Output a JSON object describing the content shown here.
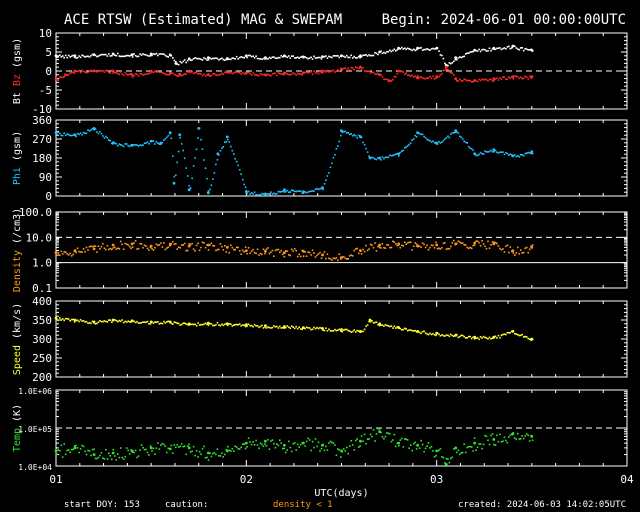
{
  "header": {
    "title": "ACE RTSW (Estimated) MAG & SWEPAM",
    "begin": "Begin: 2024-06-01 00:00:00UTC"
  },
  "footer": {
    "start_doy": "start DOY: 153",
    "caution": "caution:",
    "density_note": "density < 1",
    "created": "created: 2024-06-03 14:02:05UTC"
  },
  "colors": {
    "bt": "#ffffff",
    "bz": "#ff2a2a",
    "phi": "#22c4ff",
    "density": "#ff9a1c",
    "speed": "#ffff33",
    "temp": "#33e533",
    "axis": "#ffffff"
  },
  "chart_data": [
    {
      "type": "scatter",
      "panel": "mag",
      "ylabel_parts": [
        "Bt",
        "Bz",
        "(gsm)"
      ],
      "yticks": [
        "10",
        "5",
        "0",
        "-5",
        "-10"
      ],
      "ylim": [
        -10,
        10
      ],
      "xlim": [
        1,
        4
      ],
      "dashed_ref": [
        0
      ],
      "series": [
        {
          "name": "Bt",
          "x": [
            1.0,
            1.1,
            1.2,
            1.3,
            1.4,
            1.5,
            1.6,
            1.63,
            1.7,
            1.8,
            1.9,
            2.0,
            2.1,
            2.2,
            2.3,
            2.4,
            2.5,
            2.6,
            2.7,
            2.8,
            2.9,
            3.0,
            3.05,
            3.1,
            3.2,
            3.3,
            3.4,
            3.5
          ],
          "y": [
            4.0,
            4.0,
            4.3,
            4.5,
            4.3,
            4.5,
            4.2,
            2.0,
            3.2,
            3.5,
            3.3,
            4.0,
            3.5,
            4.0,
            3.7,
            3.8,
            4.0,
            4.0,
            5.0,
            6.0,
            6.0,
            6.0,
            1.5,
            3.5,
            5.5,
            6.0,
            6.5,
            5.5
          ]
        },
        {
          "name": "Bz",
          "x": [
            1.0,
            1.05,
            1.1,
            1.2,
            1.3,
            1.4,
            1.5,
            1.6,
            1.65,
            1.7,
            1.8,
            1.9,
            2.0,
            2.1,
            2.2,
            2.3,
            2.4,
            2.5,
            2.6,
            2.7,
            2.75,
            2.8,
            2.9,
            3.0,
            3.05,
            3.1,
            3.2,
            3.3,
            3.4,
            3.5
          ],
          "y": [
            -2.0,
            -1.0,
            0.0,
            0.0,
            0.0,
            -1.0,
            0.0,
            -0.5,
            -0.8,
            0.0,
            -1.0,
            -0.3,
            -0.5,
            -1.0,
            -0.5,
            -0.5,
            0.0,
            0.5,
            1.0,
            -1.0,
            -2.5,
            0.0,
            -1.5,
            -1.5,
            1.0,
            -2.0,
            -2.5,
            -2.0,
            -1.5,
            -1.5
          ]
        }
      ]
    },
    {
      "type": "scatter",
      "panel": "phi",
      "ylabel_parts": [
        "Phi",
        "(gsm)"
      ],
      "yticks": [
        "360",
        "270",
        "180",
        "90",
        "0"
      ],
      "ylim": [
        0,
        360
      ],
      "xlim": [
        1,
        4
      ],
      "series": [
        {
          "name": "Phi",
          "x": [
            1.0,
            1.1,
            1.2,
            1.3,
            1.4,
            1.5,
            1.55,
            1.6,
            1.62,
            1.65,
            1.7,
            1.75,
            1.8,
            1.85,
            1.9,
            2.0,
            2.1,
            2.2,
            2.3,
            2.4,
            2.5,
            2.6,
            2.65,
            2.7,
            2.8,
            2.9,
            3.0,
            3.1,
            3.2,
            3.3,
            3.4,
            3.5
          ],
          "y": [
            300,
            290,
            320,
            250,
            240,
            260,
            250,
            300,
            60,
            290,
            30,
            320,
            15,
            200,
            280,
            20,
            10,
            30,
            20,
            40,
            310,
            280,
            180,
            180,
            200,
            300,
            250,
            310,
            200,
            220,
            190,
            210
          ]
        }
      ]
    },
    {
      "type": "scatter",
      "panel": "density",
      "ylabel_parts": [
        "Density",
        "(/cm3)"
      ],
      "yticks": [
        "100.0",
        "10.0",
        "1.0",
        "0.1"
      ],
      "yscale": "log",
      "ylim": [
        0.1,
        100
      ],
      "xlim": [
        1,
        4
      ],
      "dashed_ref": [
        10
      ],
      "solid_ref": [
        1
      ],
      "series": [
        {
          "name": "Density",
          "x": [
            1.0,
            1.1,
            1.2,
            1.3,
            1.4,
            1.5,
            1.6,
            1.7,
            1.8,
            1.9,
            2.0,
            2.1,
            2.2,
            2.3,
            2.4,
            2.5,
            2.6,
            2.7,
            2.8,
            2.9,
            3.0,
            3.1,
            3.2,
            3.3,
            3.4,
            3.5
          ],
          "y": [
            2.5,
            3.0,
            3.5,
            5.0,
            5.5,
            4.5,
            5.0,
            4.5,
            5.0,
            4.0,
            3.0,
            2.8,
            2.5,
            2.8,
            2.0,
            1.6,
            3.0,
            5.0,
            5.5,
            4.5,
            5.0,
            5.5,
            6.0,
            5.5,
            3.0,
            4.0
          ]
        }
      ]
    },
    {
      "type": "scatter",
      "panel": "speed",
      "ylabel_parts": [
        "Speed",
        "(km/s)"
      ],
      "yticks": [
        "400",
        "350",
        "300",
        "250",
        "200"
      ],
      "ylim": [
        200,
        400
      ],
      "xlim": [
        1,
        4
      ],
      "series": [
        {
          "name": "Speed",
          "x": [
            1.0,
            1.1,
            1.2,
            1.3,
            1.4,
            1.5,
            1.6,
            1.7,
            1.8,
            1.9,
            2.0,
            2.1,
            2.2,
            2.3,
            2.4,
            2.5,
            2.6,
            2.65,
            2.7,
            2.8,
            2.9,
            3.0,
            3.1,
            3.2,
            3.3,
            3.4,
            3.5
          ],
          "y": [
            355,
            350,
            345,
            350,
            348,
            345,
            345,
            340,
            342,
            340,
            338,
            335,
            333,
            330,
            328,
            325,
            320,
            350,
            340,
            330,
            320,
            315,
            310,
            305,
            305,
            320,
            300
          ]
        }
      ]
    },
    {
      "type": "scatter",
      "panel": "temp",
      "ylabel_parts": [
        "Temp",
        "(K)"
      ],
      "yticks": [
        "1.0E+06",
        "1.0E+05",
        "1.0E+04"
      ],
      "yscale": "log",
      "ylim": [
        10000,
        1000000
      ],
      "xlim": [
        1,
        4
      ],
      "dashed_ref": [
        100000
      ],
      "xticks": [
        "01",
        "02",
        "03",
        "04"
      ],
      "xlabel": "UTC(days)",
      "series": [
        {
          "name": "Temp",
          "x": [
            1.0,
            1.1,
            1.2,
            1.3,
            1.4,
            1.5,
            1.6,
            1.7,
            1.8,
            1.9,
            2.0,
            2.1,
            2.2,
            2.3,
            2.4,
            2.5,
            2.6,
            2.7,
            2.8,
            2.9,
            3.0,
            3.05,
            3.1,
            3.2,
            3.3,
            3.4,
            3.5
          ],
          "y": [
            25000,
            30000,
            20000,
            22000,
            25000,
            30000,
            28000,
            30000,
            22000,
            25000,
            40000,
            45000,
            35000,
            40000,
            35000,
            25000,
            45000,
            80000,
            40000,
            35000,
            25000,
            11000,
            30000,
            40000,
            50000,
            70000,
            60000
          ]
        }
      ]
    }
  ]
}
